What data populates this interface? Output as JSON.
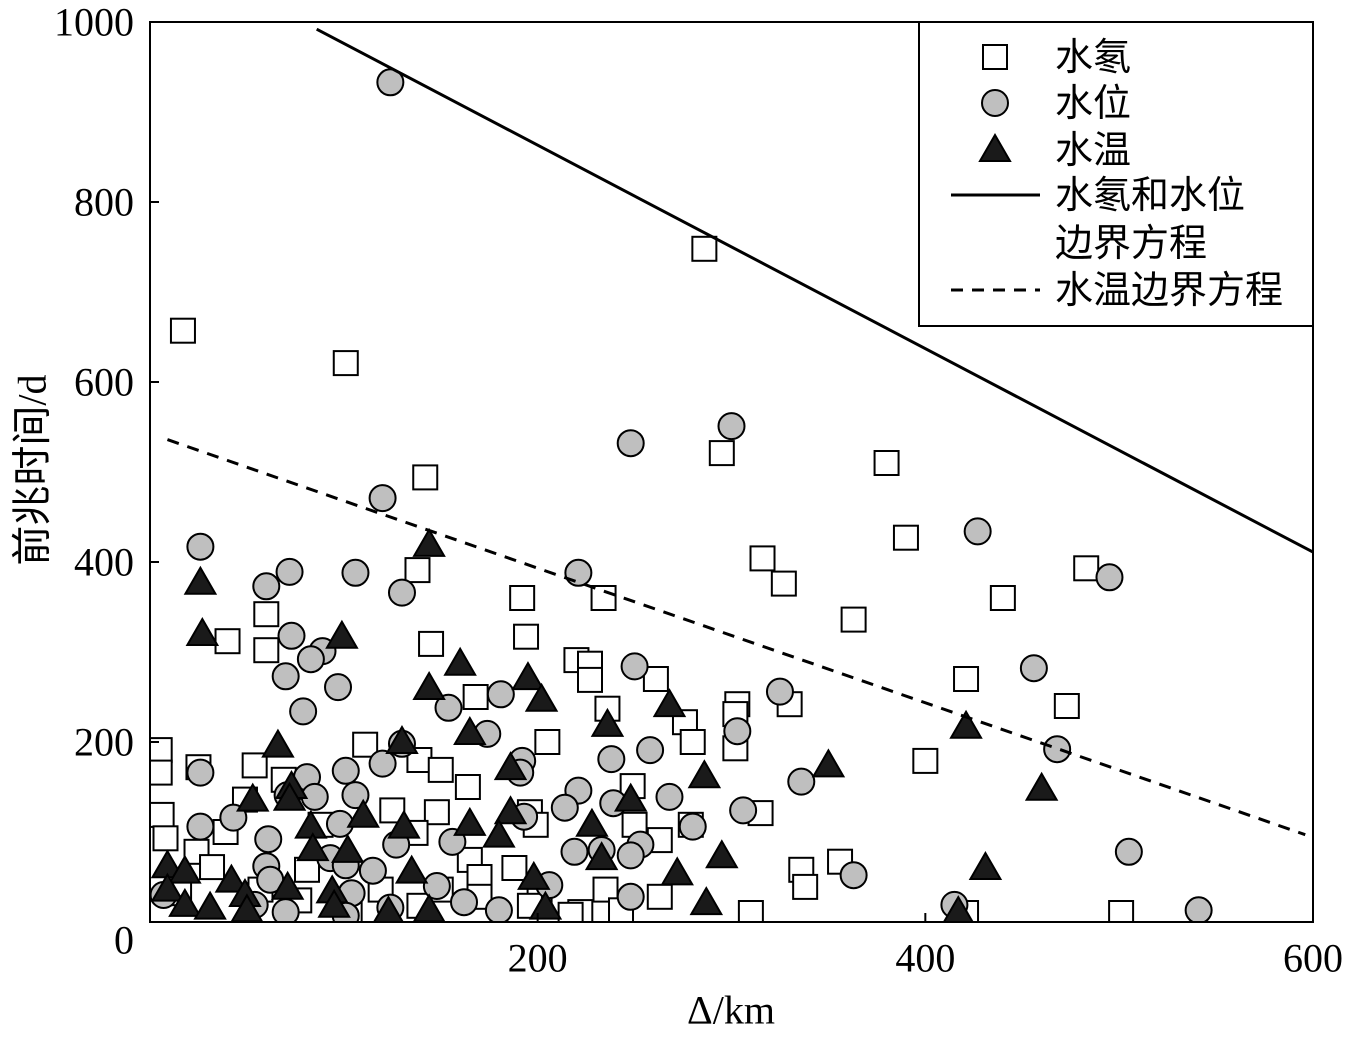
{
  "chart_data": {
    "type": "scatter",
    "title": "",
    "xlabel": "Δ/km",
    "ylabel": "前兆时间/d",
    "xlim": [
      0,
      600
    ],
    "ylim": [
      0,
      1000
    ],
    "xticks": [
      200,
      400,
      600
    ],
    "yticks": [
      0,
      200,
      400,
      600,
      800,
      1000
    ],
    "grid": false,
    "legend": "top-right",
    "series": [
      {
        "name": "水氡",
        "marker": "square",
        "fill": "#ffffff",
        "points": [
          [
            17,
            657
          ],
          [
            101,
            621
          ],
          [
            286,
            748
          ],
          [
            142,
            494
          ],
          [
            295,
            521
          ],
          [
            380,
            510
          ],
          [
            390,
            427
          ],
          [
            316,
            404
          ],
          [
            327,
            376
          ],
          [
            138,
            391
          ],
          [
            483,
            393
          ],
          [
            440,
            360
          ],
          [
            192,
            360
          ],
          [
            234,
            360
          ],
          [
            363,
            336
          ],
          [
            194,
            317
          ],
          [
            145,
            309
          ],
          [
            40,
            312
          ],
          [
            60,
            342
          ],
          [
            60,
            302
          ],
          [
            220,
            291
          ],
          [
            227,
            287
          ],
          [
            227,
            269
          ],
          [
            421,
            270
          ],
          [
            261,
            270
          ],
          [
            473,
            240
          ],
          [
            303,
            242
          ],
          [
            330,
            242
          ],
          [
            236,
            237
          ],
          [
            168,
            250
          ],
          [
            276,
            222
          ],
          [
            280,
            200
          ],
          [
            302,
            231
          ],
          [
            302,
            193
          ],
          [
            205,
            200
          ],
          [
            111,
            197
          ],
          [
            5,
            191
          ],
          [
            5,
            166
          ],
          [
            25,
            172
          ],
          [
            54,
            174
          ],
          [
            400,
            179
          ],
          [
            69,
            158
          ],
          [
            139,
            180
          ],
          [
            150,
            169
          ],
          [
            164,
            150
          ],
          [
            249,
            151
          ],
          [
            49,
            136
          ],
          [
            315,
            121
          ],
          [
            125,
            124
          ],
          [
            148,
            122
          ],
          [
            196,
            122
          ],
          [
            6,
            119
          ],
          [
            199,
            108
          ],
          [
            250,
            108
          ],
          [
            279,
            108
          ],
          [
            8,
            93
          ],
          [
            24,
            78
          ],
          [
            39,
            100
          ],
          [
            137,
            99
          ],
          [
            263,
            91
          ],
          [
            88,
            108
          ],
          [
            165,
            69
          ],
          [
            32,
            61
          ],
          [
            170,
            50
          ],
          [
            188,
            60
          ],
          [
            336,
            58
          ],
          [
            356,
            67
          ],
          [
            338,
            39
          ],
          [
            263,
            28
          ],
          [
            170,
            28
          ],
          [
            201,
            24
          ],
          [
            119,
            36
          ],
          [
            235,
            36
          ],
          [
            310,
            10
          ],
          [
            501,
            10
          ],
          [
            421,
            10
          ],
          [
            222,
            11
          ],
          [
            196,
            18
          ],
          [
            139,
            18
          ],
          [
            101,
            19
          ],
          [
            217,
            8
          ],
          [
            15,
            32
          ],
          [
            103,
            8
          ],
          [
            77,
            24
          ],
          [
            243,
            13
          ],
          [
            150,
            36
          ],
          [
            57,
            36
          ],
          [
            81,
            58
          ]
        ]
      },
      {
        "name": "水位",
        "marker": "circle",
        "fill": "#bfbfbf",
        "points": [
          [
            124,
            933
          ],
          [
            248,
            532
          ],
          [
            300,
            551
          ],
          [
            427,
            434
          ],
          [
            120,
            471
          ],
          [
            26,
            417
          ],
          [
            495,
            383
          ],
          [
            221,
            388
          ],
          [
            72,
            389
          ],
          [
            106,
            388
          ],
          [
            60,
            373
          ],
          [
            130,
            366
          ],
          [
            73,
            318
          ],
          [
            89,
            301
          ],
          [
            83,
            292
          ],
          [
            456,
            282
          ],
          [
            250,
            284
          ],
          [
            70,
            273
          ],
          [
            97,
            261
          ],
          [
            181,
            253
          ],
          [
            325,
            256
          ],
          [
            154,
            238
          ],
          [
            79,
            234
          ],
          [
            174,
            209
          ],
          [
            303,
            212
          ],
          [
            130,
            198
          ],
          [
            120,
            176
          ],
          [
            468,
            192
          ],
          [
            192,
            179
          ],
          [
            238,
            181
          ],
          [
            258,
            191
          ],
          [
            26,
            166
          ],
          [
            101,
            168
          ],
          [
            81,
            161
          ],
          [
            191,
            166
          ],
          [
            336,
            156
          ],
          [
            221,
            146
          ],
          [
            71,
            141
          ],
          [
            85,
            139
          ],
          [
            106,
            141
          ],
          [
            268,
            139
          ],
          [
            239,
            132
          ],
          [
            214,
            127
          ],
          [
            306,
            124
          ],
          [
            193,
            117
          ],
          [
            43,
            116
          ],
          [
            26,
            106
          ],
          [
            280,
            106
          ],
          [
            98,
            109
          ],
          [
            61,
            92
          ],
          [
            156,
            89
          ],
          [
            127,
            86
          ],
          [
            253,
            86
          ],
          [
            233,
            80
          ],
          [
            219,
            78
          ],
          [
            505,
            78
          ],
          [
            248,
            74
          ],
          [
            60,
            62
          ],
          [
            93,
            71
          ],
          [
            101,
            63
          ],
          [
            115,
            57
          ],
          [
            363,
            52
          ],
          [
            62,
            47
          ],
          [
            148,
            40
          ],
          [
            206,
            41
          ],
          [
            7,
            30
          ],
          [
            104,
            32
          ],
          [
            248,
            28
          ],
          [
            162,
            22
          ],
          [
            415,
            19
          ],
          [
            124,
            16
          ],
          [
            180,
            13
          ],
          [
            541,
            13
          ],
          [
            70,
            11
          ],
          [
            101,
            7
          ],
          [
            54,
            19
          ]
        ]
      },
      {
        "name": "水温",
        "marker": "triangle",
        "fill": "#1a1a1a",
        "points": [
          [
            144,
            419
          ],
          [
            26,
            377
          ],
          [
            27,
            320
          ],
          [
            99,
            317
          ],
          [
            160,
            287
          ],
          [
            195,
            271
          ],
          [
            144,
            260
          ],
          [
            202,
            247
          ],
          [
            268,
            241
          ],
          [
            66,
            196
          ],
          [
            130,
            200
          ],
          [
            236,
            219
          ],
          [
            421,
            217
          ],
          [
            165,
            210
          ],
          [
            186,
            171
          ],
          [
            350,
            174
          ],
          [
            286,
            162
          ],
          [
            460,
            148
          ],
          [
            73,
            150
          ],
          [
            53,
            136
          ],
          [
            72,
            137
          ],
          [
            248,
            136
          ],
          [
            110,
            118
          ],
          [
            186,
            122
          ],
          [
            165,
            109
          ],
          [
            228,
            108
          ],
          [
            83,
            106
          ],
          [
            131,
            106
          ],
          [
            180,
            96
          ],
          [
            84,
            81
          ],
          [
            102,
            79
          ],
          [
            295,
            73
          ],
          [
            233,
            71
          ],
          [
            9,
            62
          ],
          [
            18,
            56
          ],
          [
            135,
            56
          ],
          [
            272,
            54
          ],
          [
            431,
            60
          ],
          [
            198,
            49
          ],
          [
            42,
            46
          ],
          [
            9,
            36
          ],
          [
            71,
            38
          ],
          [
            94,
            34
          ],
          [
            49,
            30
          ],
          [
            287,
            21
          ],
          [
            18,
            19
          ],
          [
            31,
            16
          ],
          [
            95,
            18
          ],
          [
            144,
            13
          ],
          [
            204,
            16
          ],
          [
            417,
            11
          ],
          [
            123,
            11
          ],
          [
            50,
            13
          ]
        ]
      }
    ],
    "lines": [
      {
        "name_lines": [
          "水氡和水位",
          "边界方程"
        ],
        "style": "solid",
        "points": [
          [
            86,
            992
          ],
          [
            600,
            411
          ]
        ]
      },
      {
        "name_lines": [
          "水温边界方程"
        ],
        "style": "dashed",
        "points": [
          [
            9,
            536
          ],
          [
            596,
            97
          ]
        ]
      }
    ]
  }
}
